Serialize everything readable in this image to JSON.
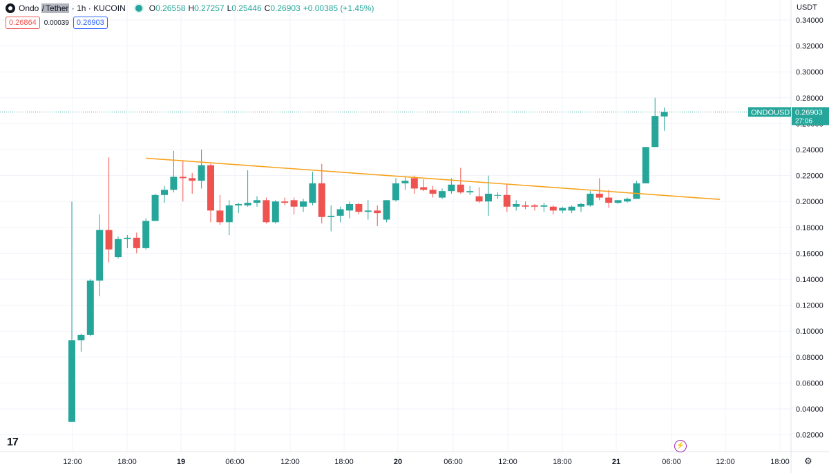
{
  "header": {
    "symbol_base": "Ondo",
    "symbol_sep": "/",
    "symbol_quote": "Tether",
    "interval_exchange": "· 1h · KUCOIN",
    "ohlc": {
      "o_label": "O",
      "o_value": "0.26558",
      "h_label": "H",
      "h_value": "0.27257",
      "l_label": "L",
      "l_value": "0.25446",
      "c_label": "C",
      "c_value": "0.26903",
      "change": "+0.00385 (+1.45%)"
    },
    "bid": "0.26864",
    "spread": "0.00039",
    "ask": "0.26903"
  },
  "axis": {
    "unit": "USDT"
  },
  "price_tag": {
    "symbol": "ONDOUSDT",
    "price": "0.26903",
    "countdown": "27:06"
  },
  "icons": {
    "logo": "tradingview-logo-icon",
    "settings": "gear-icon",
    "lightning": "lightning-icon"
  },
  "colors": {
    "up": "#26a69a",
    "down": "#ef5350",
    "trendline": "#f7a21b",
    "current_price_line": "#26a69a"
  },
  "chart_data": {
    "type": "candlestick",
    "interval": "1h",
    "y_unit": "USDT",
    "ylim": [
      0.01,
      0.345
    ],
    "y_ticks": [
      "0.34000",
      "0.32000",
      "0.30000",
      "0.28000",
      "0.26000",
      "0.24000",
      "0.22000",
      "0.20000",
      "0.18000",
      "0.16000",
      "0.14000",
      "0.12000",
      "0.10000",
      "0.08000",
      "0.06000",
      "0.04000",
      "0.02000"
    ],
    "x_labels": [
      "12:00",
      "18:00",
      "19",
      "06:00",
      "12:00",
      "18:00",
      "20",
      "06:00",
      "12:00",
      "18:00",
      "21",
      "06:00",
      "12:00",
      "18:00"
    ],
    "candles": [
      {
        "o": 0.03,
        "h": 0.2,
        "l": 0.03,
        "c": 0.093
      },
      {
        "o": 0.093,
        "h": 0.098,
        "l": 0.084,
        "c": 0.097
      },
      {
        "o": 0.097,
        "h": 0.14,
        "l": 0.096,
        "c": 0.139
      },
      {
        "o": 0.139,
        "h": 0.19,
        "l": 0.127,
        "c": 0.178
      },
      {
        "o": 0.178,
        "h": 0.234,
        "l": 0.153,
        "c": 0.163
      },
      {
        "o": 0.157,
        "h": 0.173,
        "l": 0.156,
        "c": 0.171
      },
      {
        "o": 0.171,
        "h": 0.174,
        "l": 0.164,
        "c": 0.172
      },
      {
        "o": 0.172,
        "h": 0.176,
        "l": 0.16,
        "c": 0.164
      },
      {
        "o": 0.164,
        "h": 0.187,
        "l": 0.163,
        "c": 0.185
      },
      {
        "o": 0.185,
        "h": 0.206,
        "l": 0.185,
        "c": 0.205
      },
      {
        "o": 0.205,
        "h": 0.212,
        "l": 0.199,
        "c": 0.209
      },
      {
        "o": 0.209,
        "h": 0.239,
        "l": 0.207,
        "c": 0.219
      },
      {
        "o": 0.219,
        "h": 0.231,
        "l": 0.2,
        "c": 0.218
      },
      {
        "o": 0.218,
        "h": 0.222,
        "l": 0.206,
        "c": 0.216
      },
      {
        "o": 0.216,
        "h": 0.24,
        "l": 0.21,
        "c": 0.228
      },
      {
        "o": 0.228,
        "h": 0.229,
        "l": 0.184,
        "c": 0.193
      },
      {
        "o": 0.193,
        "h": 0.205,
        "l": 0.182,
        "c": 0.184
      },
      {
        "o": 0.184,
        "h": 0.201,
        "l": 0.174,
        "c": 0.197
      },
      {
        "o": 0.197,
        "h": 0.199,
        "l": 0.191,
        "c": 0.198
      },
      {
        "o": 0.197,
        "h": 0.224,
        "l": 0.196,
        "c": 0.199
      },
      {
        "o": 0.199,
        "h": 0.204,
        "l": 0.196,
        "c": 0.201
      },
      {
        "o": 0.201,
        "h": 0.203,
        "l": 0.183,
        "c": 0.184
      },
      {
        "o": 0.184,
        "h": 0.201,
        "l": 0.183,
        "c": 0.2
      },
      {
        "o": 0.2,
        "h": 0.203,
        "l": 0.197,
        "c": 0.199
      },
      {
        "o": 0.201,
        "h": 0.203,
        "l": 0.19,
        "c": 0.196
      },
      {
        "o": 0.196,
        "h": 0.202,
        "l": 0.192,
        "c": 0.2
      },
      {
        "o": 0.199,
        "h": 0.223,
        "l": 0.197,
        "c": 0.214
      },
      {
        "o": 0.214,
        "h": 0.229,
        "l": 0.183,
        "c": 0.188
      },
      {
        "o": 0.188,
        "h": 0.197,
        "l": 0.177,
        "c": 0.189
      },
      {
        "o": 0.189,
        "h": 0.196,
        "l": 0.184,
        "c": 0.194
      },
      {
        "o": 0.193,
        "h": 0.2,
        "l": 0.187,
        "c": 0.198
      },
      {
        "o": 0.198,
        "h": 0.199,
        "l": 0.19,
        "c": 0.192
      },
      {
        "o": 0.192,
        "h": 0.201,
        "l": 0.186,
        "c": 0.193
      },
      {
        "o": 0.193,
        "h": 0.197,
        "l": 0.181,
        "c": 0.191
      },
      {
        "o": 0.186,
        "h": 0.201,
        "l": 0.184,
        "c": 0.201
      },
      {
        "o": 0.201,
        "h": 0.218,
        "l": 0.2,
        "c": 0.214
      },
      {
        "o": 0.214,
        "h": 0.219,
        "l": 0.209,
        "c": 0.216
      },
      {
        "o": 0.218,
        "h": 0.22,
        "l": 0.206,
        "c": 0.21
      },
      {
        "o": 0.211,
        "h": 0.217,
        "l": 0.208,
        "c": 0.209
      },
      {
        "o": 0.209,
        "h": 0.212,
        "l": 0.203,
        "c": 0.206
      },
      {
        "o": 0.203,
        "h": 0.21,
        "l": 0.202,
        "c": 0.208
      },
      {
        "o": 0.208,
        "h": 0.218,
        "l": 0.206,
        "c": 0.213
      },
      {
        "o": 0.213,
        "h": 0.226,
        "l": 0.206,
        "c": 0.207
      },
      {
        "o": 0.207,
        "h": 0.212,
        "l": 0.205,
        "c": 0.208
      },
      {
        "o": 0.204,
        "h": 0.211,
        "l": 0.199,
        "c": 0.2
      },
      {
        "o": 0.2,
        "h": 0.22,
        "l": 0.189,
        "c": 0.206
      },
      {
        "o": 0.205,
        "h": 0.207,
        "l": 0.202,
        "c": 0.205
      },
      {
        "o": 0.205,
        "h": 0.213,
        "l": 0.192,
        "c": 0.196
      },
      {
        "o": 0.196,
        "h": 0.201,
        "l": 0.193,
        "c": 0.198
      },
      {
        "o": 0.197,
        "h": 0.2,
        "l": 0.194,
        "c": 0.196
      },
      {
        "o": 0.197,
        "h": 0.198,
        "l": 0.193,
        "c": 0.196
      },
      {
        "o": 0.196,
        "h": 0.199,
        "l": 0.192,
        "c": 0.197
      },
      {
        "o": 0.196,
        "h": 0.197,
        "l": 0.19,
        "c": 0.193
      },
      {
        "o": 0.193,
        "h": 0.196,
        "l": 0.191,
        "c": 0.195
      },
      {
        "o": 0.193,
        "h": 0.197,
        "l": 0.191,
        "c": 0.196
      },
      {
        "o": 0.196,
        "h": 0.199,
        "l": 0.192,
        "c": 0.198
      },
      {
        "o": 0.197,
        "h": 0.208,
        "l": 0.196,
        "c": 0.206
      },
      {
        "o": 0.206,
        "h": 0.218,
        "l": 0.201,
        "c": 0.203
      },
      {
        "o": 0.203,
        "h": 0.209,
        "l": 0.195,
        "c": 0.199
      },
      {
        "o": 0.199,
        "h": 0.201,
        "l": 0.198,
        "c": 0.201
      },
      {
        "o": 0.2,
        "h": 0.203,
        "l": 0.199,
        "c": 0.202
      },
      {
        "o": 0.202,
        "h": 0.216,
        "l": 0.202,
        "c": 0.214
      },
      {
        "o": 0.214,
        "h": 0.242,
        "l": 0.214,
        "c": 0.242
      },
      {
        "o": 0.242,
        "h": 0.28,
        "l": 0.242,
        "c": 0.266
      },
      {
        "o": 0.26558,
        "h": 0.27257,
        "l": 0.25446,
        "c": 0.26903
      }
    ],
    "trendline": {
      "color": "#f7a21b",
      "points": [
        {
          "i": 8.0,
          "price": 0.2334
        },
        {
          "i": 70.0,
          "price": 0.2016
        }
      ]
    },
    "current_price_line": {
      "price": 0.26903,
      "style": "dotted"
    },
    "grid": true,
    "legend": "none"
  }
}
